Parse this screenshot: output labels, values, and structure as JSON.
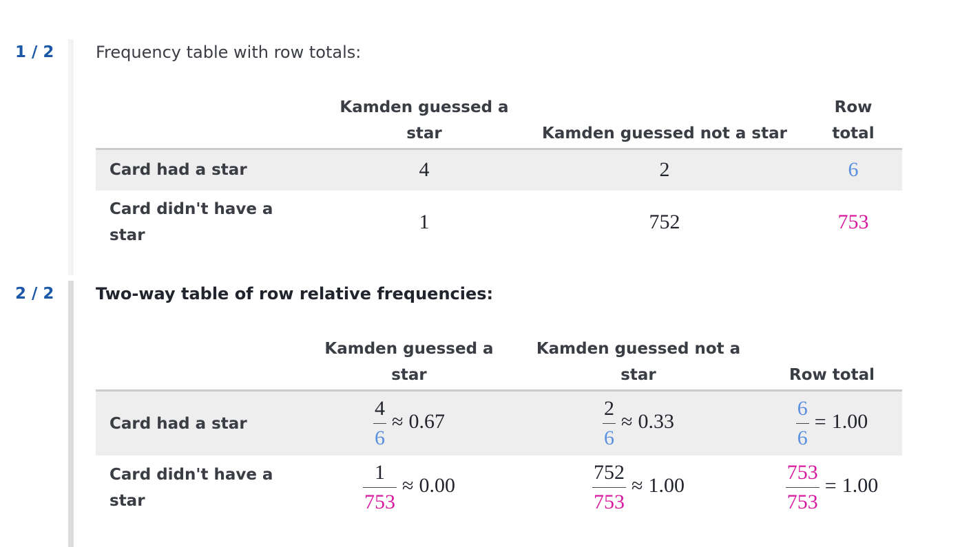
{
  "steps": [
    {
      "counter": "1 / 2",
      "title": "Frequency table with row totals:",
      "table": {
        "header": [
          "Kamden guessed a star",
          "Kamden guessed not a star",
          "Row total"
        ],
        "rows": [
          {
            "label": "Card had a star",
            "color": "#5b8fdf",
            "cells": [
              "4",
              "2",
              "6"
            ]
          },
          {
            "label": "Card didn't have a star",
            "color": "#d8199f",
            "cells": [
              "1",
              "752",
              "753"
            ]
          }
        ]
      }
    },
    {
      "counter": "2 / 2",
      "title": "Two-way table of row relative frequencies:",
      "table": {
        "header": [
          "Kamden guessed a star",
          "Kamden guessed not a star",
          "Row total"
        ],
        "rows": [
          {
            "label": "Card had a star",
            "color": "#5b8fdf",
            "cells": [
              {
                "numerator": "4",
                "denominator": "6",
                "relation": "≈",
                "result": "0.67"
              },
              {
                "numerator": "2",
                "denominator": "6",
                "relation": "≈",
                "result": "0.33"
              },
              {
                "numerator": "6",
                "denominator": "6",
                "relation": "=",
                "result": "1.00"
              }
            ]
          },
          {
            "label": "Card didn't have a star",
            "color": "#d8199f",
            "cells": [
              {
                "numerator": "1",
                "denominator": "753",
                "relation": "≈",
                "result": "0.00"
              },
              {
                "numerator": "752",
                "denominator": "753",
                "relation": "≈",
                "result": "1.00"
              },
              {
                "numerator": "753",
                "denominator": "753",
                "relation": "=",
                "result": "1.00"
              }
            ]
          }
        ]
      }
    }
  ]
}
